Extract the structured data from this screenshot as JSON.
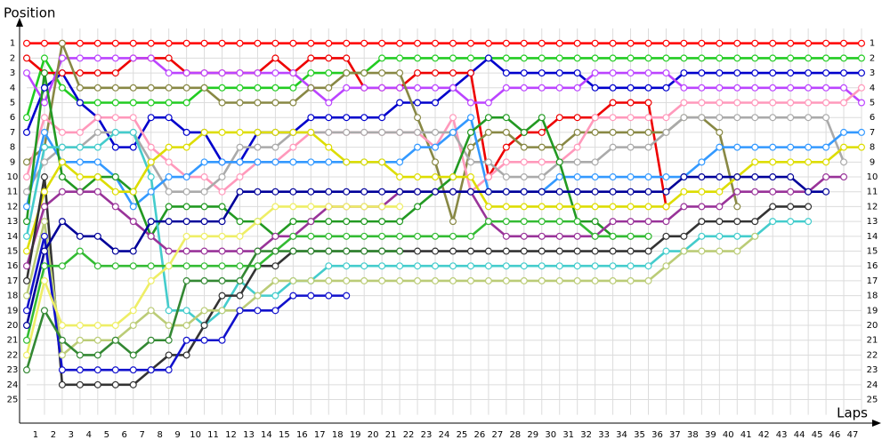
{
  "chart_data": {
    "type": "line",
    "ylabel": "Position",
    "xlabel": "Laps",
    "x": [
      0,
      1,
      2,
      3,
      4,
      5,
      6,
      7,
      8,
      9,
      10,
      11,
      12,
      13,
      14,
      15,
      16,
      17,
      18,
      19,
      20,
      21,
      22,
      23,
      24,
      25,
      26,
      27,
      28,
      29,
      30,
      31,
      32,
      33,
      34,
      35,
      36,
      37,
      38,
      39,
      40,
      41,
      42,
      43,
      44,
      45,
      46,
      47
    ],
    "xlim": [
      0,
      47
    ],
    "xticks": [
      1,
      2,
      3,
      4,
      5,
      6,
      7,
      8,
      9,
      10,
      11,
      12,
      13,
      14,
      15,
      16,
      17,
      18,
      19,
      20,
      21,
      22,
      23,
      24,
      25,
      26,
      27,
      28,
      29,
      30,
      31,
      32,
      33,
      34,
      35,
      36,
      37,
      38,
      39,
      40,
      41,
      42,
      43,
      44,
      45,
      46,
      47
    ],
    "ylim": [
      26.5,
      0
    ],
    "yticks": [
      1,
      2,
      3,
      4,
      5,
      6,
      7,
      8,
      9,
      10,
      11,
      12,
      13,
      14,
      15,
      16,
      17,
      18,
      19,
      20,
      21,
      22,
      23,
      24,
      25
    ],
    "grid": true,
    "series": [
      {
        "color": "#ff0000",
        "values": [
          1,
          1,
          1,
          1,
          1,
          1,
          1,
          1,
          1,
          1,
          1,
          1,
          1,
          1,
          1,
          1,
          1,
          1,
          1,
          1,
          1,
          1,
          1,
          1,
          1,
          1,
          1,
          1,
          1,
          1,
          1,
          1,
          1,
          1,
          1,
          1,
          1,
          1,
          1,
          1,
          1,
          1,
          1,
          1,
          1,
          1,
          1,
          1
        ]
      },
      {
        "color": "#22cc22",
        "values": [
          6,
          2,
          4,
          5,
          5,
          5,
          5,
          5,
          5,
          5,
          4,
          4,
          4,
          4,
          4,
          4,
          3,
          3,
          3,
          3,
          2,
          2,
          2,
          2,
          2,
          2,
          2,
          2,
          2,
          2,
          2,
          2,
          2,
          2,
          2,
          2,
          2,
          2,
          2,
          2,
          2,
          2,
          2,
          2,
          2,
          2,
          2,
          2
        ]
      },
      {
        "color": "#0000cc",
        "values": [
          7,
          4,
          3,
          5,
          6,
          8,
          8,
          6,
          6,
          7,
          7,
          9,
          9,
          7,
          7,
          7,
          6,
          6,
          6,
          6,
          6,
          5,
          5,
          5,
          4,
          3,
          2,
          3,
          3,
          3,
          3,
          3,
          4,
          4,
          4,
          4,
          4,
          3,
          3,
          3,
          3,
          3,
          3,
          3,
          3,
          3,
          3,
          3
        ]
      },
      {
        "color": "#ee0000",
        "values": [
          2,
          3,
          3,
          3,
          3,
          3,
          2,
          2,
          2,
          3,
          3,
          3,
          3,
          3,
          2,
          3,
          2,
          2,
          2,
          4,
          4,
          4,
          3,
          3,
          3,
          3,
          10,
          8,
          7,
          7,
          6,
          6,
          6,
          5,
          5,
          5,
          12,
          null,
          null,
          null,
          null,
          null,
          null,
          null,
          null,
          null,
          null,
          null
        ]
      },
      {
        "color": "#bb44ff",
        "values": [
          3,
          5,
          2,
          2,
          2,
          2,
          2,
          2,
          3,
          3,
          3,
          3,
          3,
          3,
          3,
          3,
          4,
          5,
          4,
          4,
          4,
          4,
          4,
          4,
          4,
          5,
          5,
          4,
          4,
          4,
          4,
          4,
          3,
          3,
          3,
          3,
          3,
          4,
          4,
          4,
          4,
          4,
          4,
          4,
          4,
          4,
          4,
          5
        ]
      },
      {
        "color": "#888844",
        "values": [
          9,
          8,
          1,
          4,
          4,
          4,
          4,
          4,
          4,
          4,
          4,
          5,
          5,
          5,
          5,
          5,
          4,
          4,
          3,
          3,
          3,
          3,
          6,
          9,
          13,
          8,
          7,
          7,
          8,
          8,
          8,
          7,
          7,
          7,
          7,
          7,
          7,
          6,
          6,
          7,
          12,
          null,
          null,
          null,
          null,
          null,
          null,
          null
        ]
      },
      {
        "color": "#ff99bb",
        "values": [
          10,
          6,
          7,
          7,
          6,
          6,
          6,
          8,
          9,
          10,
          10,
          11,
          10,
          9,
          9,
          8,
          7,
          7,
          7,
          7,
          7,
          7,
          7,
          8,
          6,
          11,
          10,
          9,
          9,
          9,
          9,
          8,
          6,
          6,
          6,
          6,
          6,
          5,
          5,
          5,
          5,
          5,
          5,
          5,
          5,
          5,
          5,
          4
        ]
      },
      {
        "color": "#aaaaaa",
        "values": [
          11,
          9,
          8,
          8,
          7,
          7,
          7,
          9,
          11,
          11,
          11,
          10,
          8,
          8,
          8,
          7,
          7,
          7,
          7,
          7,
          7,
          7,
          7,
          7,
          7,
          9,
          9,
          10,
          10,
          10,
          9,
          9,
          9,
          8,
          8,
          8,
          7,
          6,
          6,
          6,
          6,
          6,
          6,
          6,
          6,
          6,
          9,
          null
        ]
      },
      {
        "color": "#3399ff",
        "values": [
          12,
          7,
          9,
          9,
          9,
          10,
          12,
          11,
          10,
          10,
          9,
          9,
          9,
          9,
          9,
          9,
          9,
          9,
          9,
          9,
          9,
          9,
          8,
          8,
          7,
          6,
          11,
          11,
          11,
          11,
          10,
          10,
          10,
          10,
          10,
          10,
          10,
          10,
          9,
          8,
          8,
          8,
          8,
          8,
          8,
          8,
          7,
          7
        ]
      },
      {
        "color": "#229922",
        "values": [
          13,
          3,
          10,
          11,
          10,
          10,
          11,
          14,
          12,
          12,
          12,
          12,
          13,
          13,
          14,
          13,
          13,
          13,
          13,
          13,
          13,
          13,
          12,
          11,
          10,
          7,
          6,
          6,
          7,
          6,
          9,
          13,
          13,
          14,
          14,
          14,
          null,
          null,
          null,
          null,
          null,
          null,
          null,
          null,
          null,
          null,
          null,
          null
        ]
      },
      {
        "color": "#44cccc",
        "values": [
          14,
          8,
          8,
          8,
          8,
          7,
          7,
          10,
          19,
          19,
          20,
          19,
          17,
          18,
          18,
          17,
          17,
          16,
          16,
          16,
          16,
          16,
          16,
          16,
          16,
          16,
          16,
          16,
          16,
          16,
          16,
          16,
          16,
          16,
          16,
          16,
          15,
          15,
          14,
          14,
          14,
          14,
          13,
          13,
          13,
          null,
          null,
          null
        ]
      },
      {
        "color": "#dddd00",
        "values": [
          15,
          11,
          9,
          10,
          10,
          11,
          11,
          9,
          8,
          8,
          7,
          7,
          7,
          7,
          7,
          7,
          7,
          8,
          9,
          9,
          9,
          10,
          10,
          10,
          10,
          10,
          12,
          12,
          12,
          12,
          12,
          12,
          12,
          12,
          12,
          12,
          12,
          11,
          11,
          11,
          10,
          9,
          9,
          9,
          9,
          9,
          8,
          8
        ]
      },
      {
        "color": "#993399",
        "values": [
          16,
          12,
          11,
          11,
          11,
          12,
          13,
          14,
          15,
          15,
          15,
          15,
          15,
          15,
          14,
          14,
          13,
          12,
          12,
          12,
          12,
          11,
          11,
          11,
          11,
          11,
          13,
          14,
          14,
          14,
          14,
          14,
          14,
          13,
          13,
          13,
          13,
          12,
          12,
          12,
          11,
          11,
          11,
          11,
          11,
          10,
          10,
          null
        ]
      },
      {
        "color": "#333333",
        "values": [
          17,
          10,
          24,
          24,
          24,
          24,
          24,
          23,
          22,
          22,
          20,
          18,
          18,
          16,
          16,
          15,
          15,
          15,
          15,
          15,
          15,
          15,
          15,
          15,
          15,
          15,
          15,
          15,
          15,
          15,
          15,
          15,
          15,
          15,
          15,
          15,
          14,
          14,
          13,
          13,
          13,
          13,
          12,
          12,
          12,
          null,
          null,
          null
        ]
      },
      {
        "color": "#bbcc77",
        "values": [
          18,
          13,
          22,
          21,
          21,
          21,
          20,
          19,
          20,
          20,
          19,
          19,
          19,
          18,
          17,
          17,
          17,
          17,
          17,
          17,
          17,
          17,
          17,
          17,
          17,
          17,
          17,
          17,
          17,
          17,
          17,
          17,
          17,
          17,
          17,
          17,
          16,
          15,
          15,
          15,
          15,
          14,
          null,
          null,
          null,
          null,
          null,
          null
        ]
      },
      {
        "color": "#1111cc",
        "values": [
          19,
          14,
          23,
          23,
          23,
          23,
          23,
          23,
          23,
          21,
          21,
          21,
          19,
          19,
          19,
          18,
          18,
          18,
          18,
          null,
          null,
          null,
          null,
          null,
          null,
          null,
          null,
          null,
          null,
          null,
          null,
          null,
          null,
          null,
          null,
          null,
          null,
          null,
          null,
          null,
          null,
          null,
          null,
          null,
          null,
          null,
          null,
          null
        ]
      },
      {
        "color": "#000099",
        "values": [
          20,
          15,
          13,
          14,
          14,
          15,
          15,
          13,
          13,
          13,
          13,
          13,
          11,
          11,
          11,
          11,
          11,
          11,
          11,
          11,
          11,
          11,
          11,
          11,
          11,
          11,
          11,
          11,
          11,
          11,
          11,
          11,
          11,
          11,
          11,
          11,
          11,
          10,
          10,
          10,
          10,
          10,
          10,
          10,
          11,
          11,
          null,
          null
        ]
      },
      {
        "color": "#33bb33",
        "values": [
          21,
          16,
          16,
          15,
          16,
          16,
          16,
          16,
          16,
          16,
          16,
          16,
          16,
          16,
          15,
          14,
          14,
          14,
          14,
          14,
          14,
          14,
          14,
          14,
          14,
          14,
          13,
          13,
          13,
          13,
          13,
          13,
          14,
          14,
          14,
          14,
          null,
          null,
          null,
          null,
          null,
          null,
          null,
          null,
          null,
          null,
          null,
          null
        ]
      },
      {
        "color": "#eeee66",
        "values": [
          22,
          17,
          20,
          20,
          20,
          20,
          19,
          17,
          16,
          14,
          14,
          14,
          14,
          13,
          12,
          12,
          12,
          12,
          12,
          12,
          12,
          12,
          null,
          null,
          null,
          null,
          null,
          null,
          null,
          null,
          null,
          null,
          null,
          null,
          null,
          null,
          null,
          null,
          null,
          null,
          null,
          null,
          null,
          null,
          null,
          null,
          null,
          null
        ]
      },
      {
        "color": "#338833",
        "values": [
          23,
          19,
          21,
          22,
          22,
          21,
          22,
          21,
          21,
          17,
          17,
          17,
          17,
          15,
          15,
          15,
          15,
          15,
          15,
          15,
          15,
          15,
          null,
          null,
          null,
          null,
          null,
          null,
          null,
          null,
          null,
          null,
          null,
          null,
          null,
          null,
          null,
          null,
          null,
          null,
          null,
          null,
          null,
          null,
          null,
          null,
          null,
          null
        ]
      }
    ]
  }
}
